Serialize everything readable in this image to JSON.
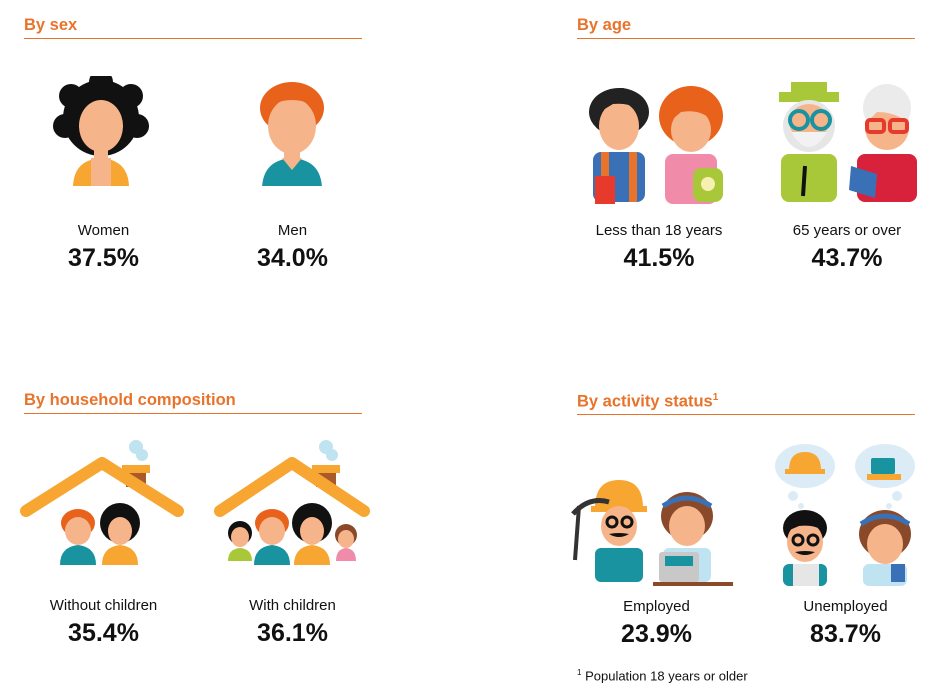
{
  "sections": {
    "sex": {
      "title": "By sex",
      "items": [
        {
          "label": "Women",
          "value": "37.5%",
          "icon": "woman-icon"
        },
        {
          "label": "Men",
          "value": "34.0%",
          "icon": "man-icon"
        }
      ]
    },
    "age": {
      "title": "By age",
      "items": [
        {
          "label": "Less than 18 years",
          "value": "41.5%",
          "icon": "children-icon"
        },
        {
          "label": "65 years or over",
          "value": "43.7%",
          "icon": "elderly-icon"
        }
      ]
    },
    "household": {
      "title": "By household composition",
      "items": [
        {
          "label": "Without children",
          "value": "35.4%",
          "icon": "couple-house-icon"
        },
        {
          "label": "With children",
          "value": "36.1%",
          "icon": "family-house-icon"
        }
      ]
    },
    "activity": {
      "title": "By activity status",
      "title_sup": "1",
      "items": [
        {
          "label": "Employed",
          "value": "23.9%",
          "icon": "workers-icon"
        },
        {
          "label": "Unemployed",
          "value": "83.7%",
          "icon": "unemployed-icon"
        }
      ]
    }
  },
  "footnote": {
    "marker": "1",
    "text": "Population 18 years or older"
  },
  "colors": {
    "accent": "#e8742c"
  }
}
